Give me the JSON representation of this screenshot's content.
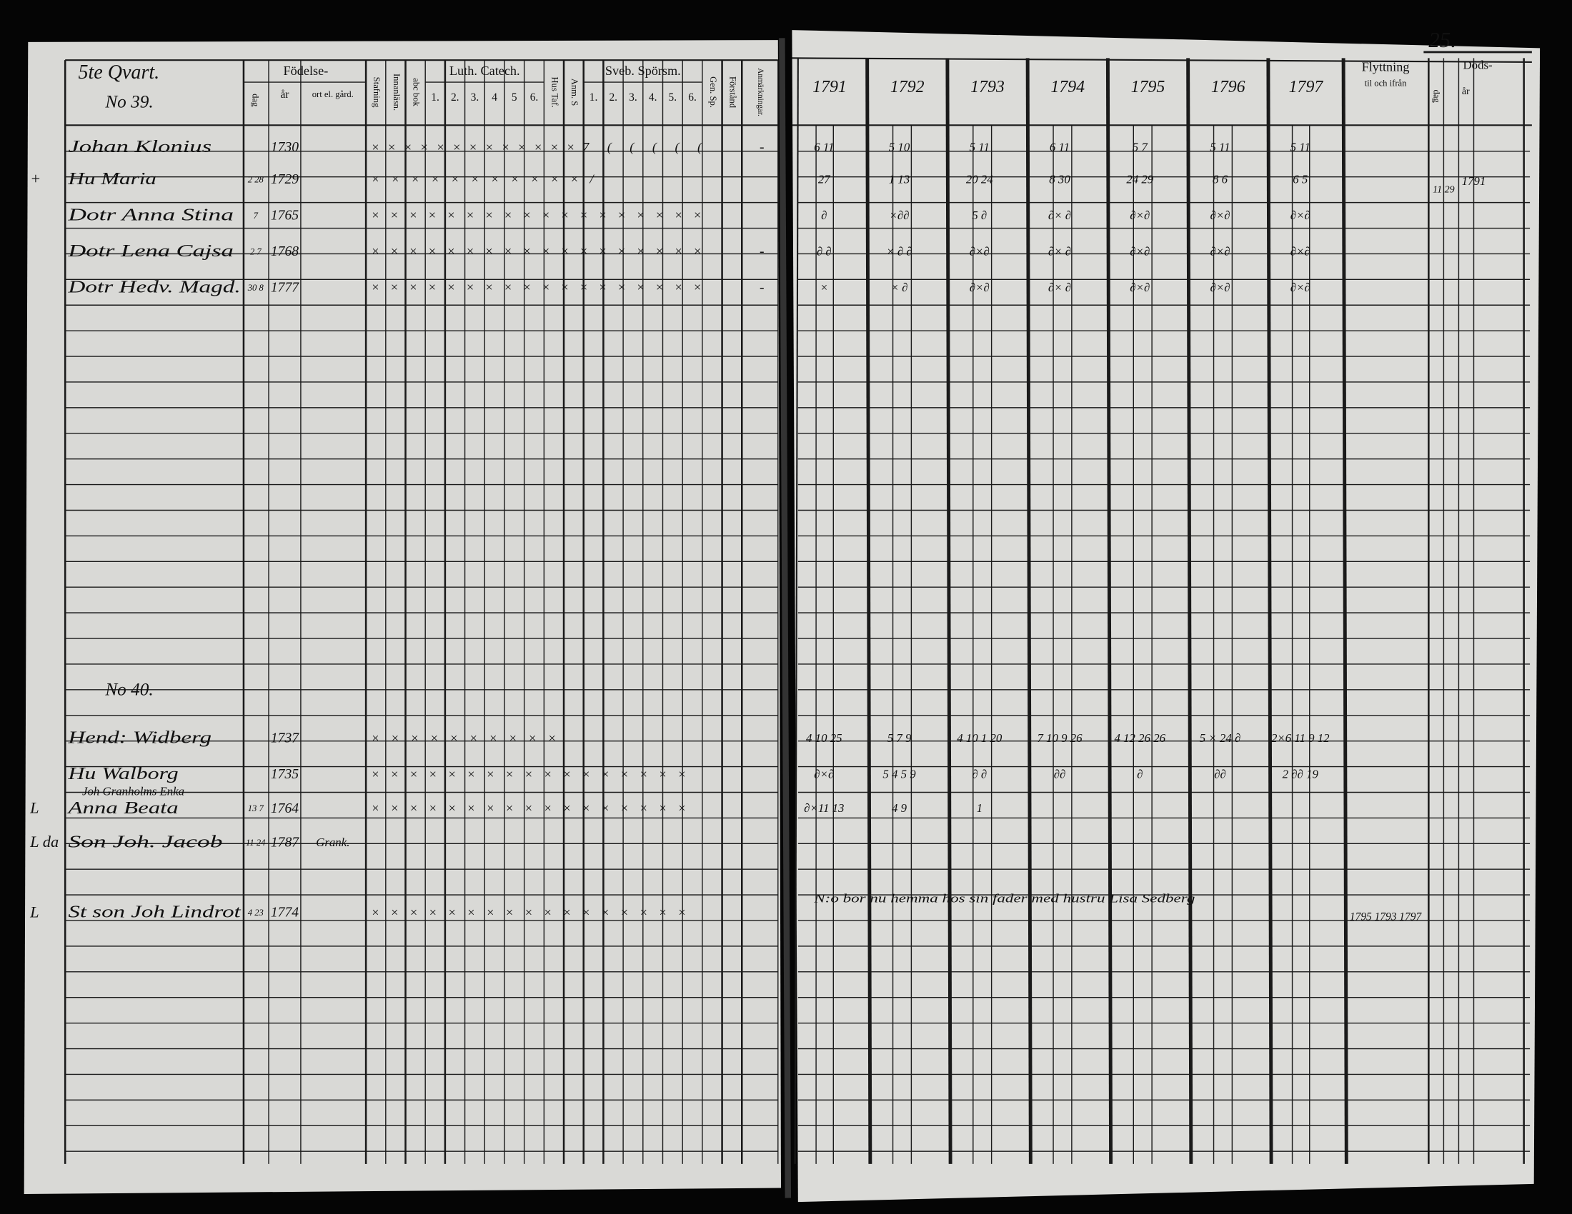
{
  "page_number": "25.",
  "left_page": {
    "header": {
      "quarter": "5te Qvart.",
      "birth": "Födelse-",
      "birth_day": "dag",
      "birth_year": "år",
      "birth_place": "ort el. gård.",
      "spelling": "Stafning",
      "reading": "Innanläsn.",
      "abc": "abc bok",
      "luther": "Luth. Catech.",
      "luther_numbers": [
        "1.",
        "2.",
        "3.",
        "4",
        "5",
        "6."
      ],
      "house_table": "Hus Taf.",
      "notes_s": "Anm. S",
      "svebilius": "Sveb. Spörsm.",
      "svebilius_numbers": [
        "1.",
        "2.",
        "3.",
        "4.",
        "5.",
        "6."
      ],
      "gen_sp": "Gen. Sp.",
      "understanding": "Förstånd",
      "remarks": "Anmärkningar."
    },
    "households": [
      {
        "number": "No 39.",
        "members": [
          {
            "name": "Johan Klonius",
            "year": "1730",
            "marks": "×××××××××××××7 ( ( ( ( (",
            "remark": "-",
            "years": [
              "6 11",
              "5 10",
              "5 11",
              "6 11",
              "5 7",
              "5 11",
              "5 11"
            ]
          },
          {
            "prefix": "+",
            "name": "Hu Maria",
            "day": "2 28",
            "year": "1729",
            "marks": "×××××××××××/",
            "years": [
              "27",
              "1 13",
              "20 24",
              "8 30",
              "24 29",
              "8 6",
              "6 5"
            ],
            "death_day": "11 29",
            "death_year": "1791"
          },
          {
            "name": "Dotr Anna Stina",
            "day": "7",
            "year": "1765",
            "marks": "××××××××××××××××××",
            "years": [
              "∂",
              "×∂∂",
              "5 ∂",
              "∂× ∂",
              "∂×∂",
              "∂×∂",
              "∂×∂"
            ]
          },
          {
            "name": "Dotr Lena Cajsa",
            "day": "2 7",
            "year": "1768",
            "marks": "××××××××××××××××××",
            "remark": "-",
            "years": [
              "∂ ∂",
              "× ∂ ∂",
              "∂×∂",
              "∂× ∂",
              "∂×∂",
              "∂×∂",
              "∂×∂"
            ]
          },
          {
            "name": "Dotr Hedv. Magd.",
            "day": "30 8",
            "year": "1777",
            "marks": "××××××××××××××××××",
            "remark": "-",
            "years": [
              "×",
              "× ∂",
              "∂×∂",
              "∂× ∂",
              "∂×∂",
              "∂×∂",
              "∂×∂"
            ]
          }
        ]
      },
      {
        "number": "No 40.",
        "members": [
          {
            "name": "Hend: Widberg",
            "year": "1737",
            "marks": "××××××××××",
            "years": [
              "4 10 25",
              "5 7 9",
              "4 10 1 20",
              "7 10 9 26",
              "4 12 26 26",
              "5 × 24 ∂",
              "2×6 11 9 12"
            ]
          },
          {
            "name": "Hu Walborg",
            "year": "1735",
            "marks": "×××××××××××××××××",
            "years": [
              "∂×∂",
              "5 4 5 9",
              "∂ ∂",
              "∂∂",
              "∂",
              "∂∂",
              "2 ∂∂ 19"
            ]
          },
          {
            "prefix": "L",
            "name_above": "Joh Granholms Enka",
            "name": "Anna Beata",
            "day": "13 7",
            "year": "1764",
            "marks": "×××××××××××××××××",
            "years": [
              "∂×11 13",
              "4 9",
              "1",
              null,
              null,
              null,
              null
            ]
          },
          {
            "prefix": "L da",
            "name": "Son Joh. Jacob",
            "day": "11 24",
            "year": "1787",
            "place": "Grank.",
            "years": [
              null,
              null,
              null,
              null,
              null,
              null,
              null
            ]
          },
          {
            "prefix": "L",
            "name": "St son Joh Lindrot",
            "day": "4 23",
            "year": "1774",
            "marks": "×××××××××××××××××",
            "years": [
              null,
              null,
              null,
              null,
              null,
              null,
              null
            ],
            "note": "N:o bor nu hemma hos sin fader med hustru Lisa Sedberg",
            "moving": "1795 1793 1797"
          }
        ]
      }
    ]
  },
  "right_page": {
    "header": {
      "years": [
        "1791",
        "1792",
        "1793",
        "1794",
        "1795",
        "1796",
        "1797"
      ],
      "moving": "Flyttning",
      "moving_sub": "til och ifrån",
      "death": "Döds-",
      "death_day": "dag",
      "death_year": "år"
    }
  }
}
